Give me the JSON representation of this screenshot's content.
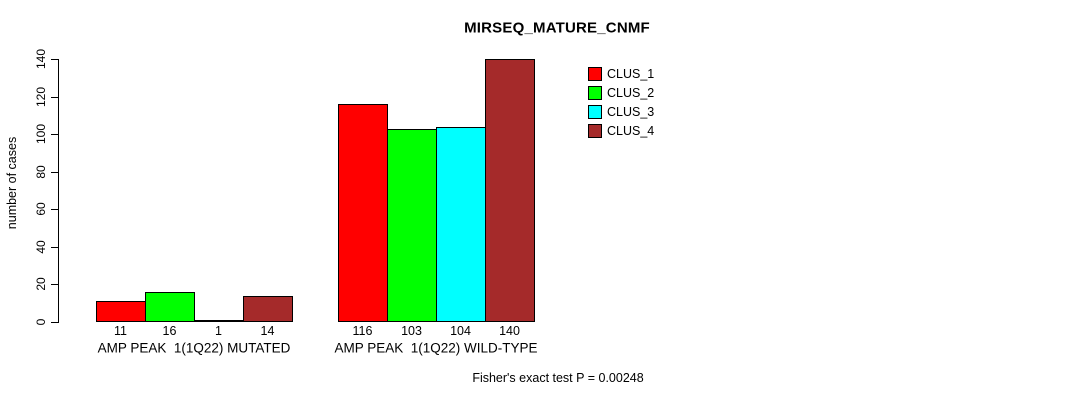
{
  "chart_data": {
    "type": "bar",
    "title": "MIRSEQ_MATURE_CNMF",
    "ylabel": "number of cases",
    "xlabel": "",
    "ylim": [
      0,
      140
    ],
    "yticks": [
      0,
      20,
      40,
      60,
      80,
      100,
      120,
      140
    ],
    "categories": [
      "AMP PEAK  1(1Q22) MUTATED",
      "AMP PEAK  1(1Q22) WILD-TYPE"
    ],
    "series": [
      {
        "name": "CLUS_1",
        "color": "#FF0000",
        "values": [
          11,
          116
        ]
      },
      {
        "name": "CLUS_2",
        "color": "#00FF00",
        "values": [
          16,
          103
        ]
      },
      {
        "name": "CLUS_3",
        "color": "#00FFFF",
        "values": [
          1,
          104
        ]
      },
      {
        "name": "CLUS_4",
        "color": "#A52A2A",
        "values": [
          14,
          140
        ]
      }
    ],
    "value_labels_shown": true,
    "legend_position": "top-right",
    "grid": false,
    "background_color": "#FFFFFF",
    "axis_color": "#000000",
    "annotation": "Fisher's exact test P = 0.00248"
  }
}
